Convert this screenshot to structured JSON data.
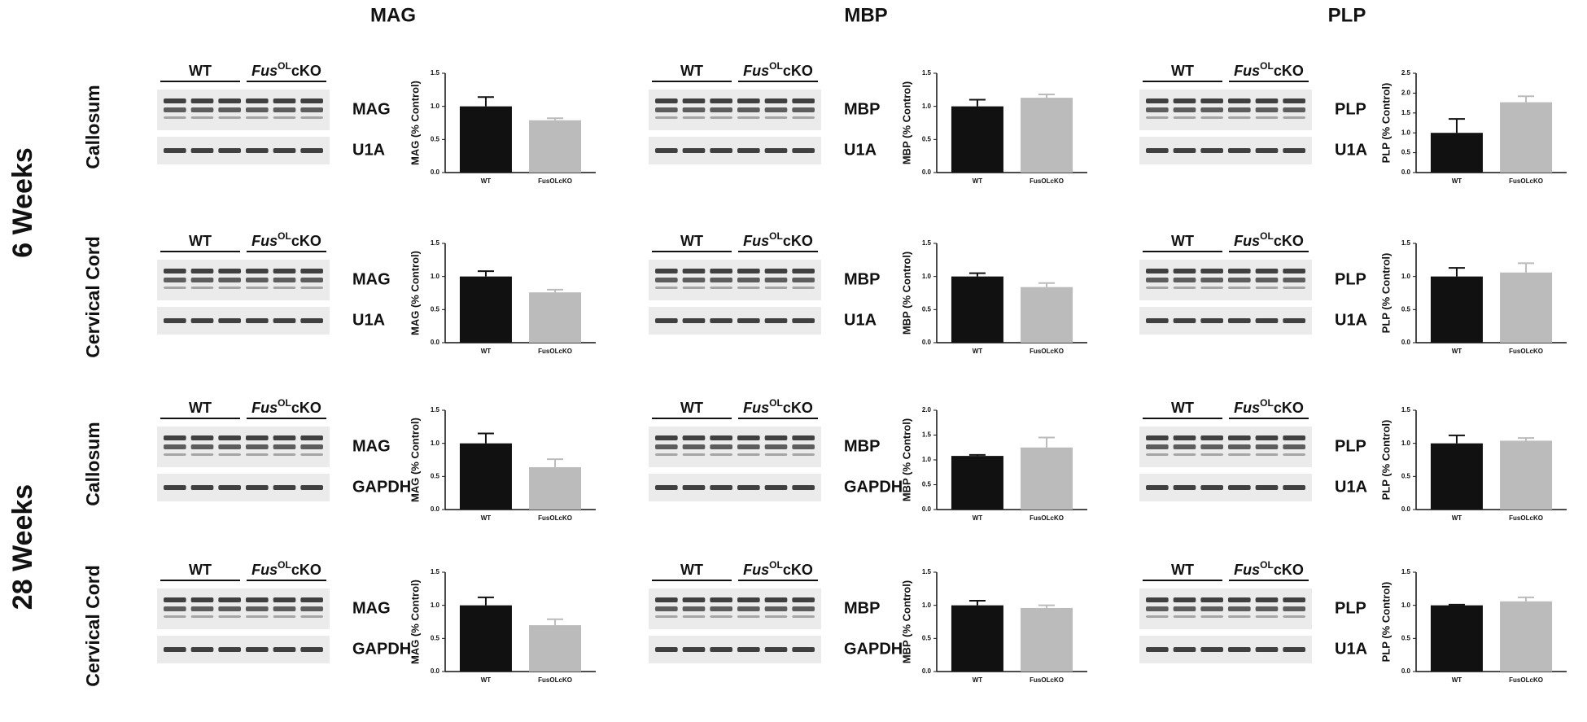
{
  "column_titles": [
    "MAG",
    "MBP",
    "PLP"
  ],
  "row_groups": [
    {
      "label": "6 Weeks",
      "rows": [
        "Callosum",
        "Cervical Cord"
      ]
    },
    {
      "label": "28 Weeks",
      "rows": [
        "Callosum",
        "Cervical Cord"
      ]
    }
  ],
  "genotype": {
    "wt": "WT",
    "ko": [
      "Fus",
      "OL",
      "cKO"
    ]
  },
  "blots": [
    {
      "bands": [
        "MAG",
        "U1A"
      ]
    },
    {
      "bands": [
        "MBP",
        "U1A"
      ]
    },
    {
      "bands": [
        "PLP",
        "U1A"
      ]
    },
    {
      "bands": [
        "MAG",
        "U1A"
      ]
    },
    {
      "bands": [
        "MBP",
        "U1A"
      ]
    },
    {
      "bands": [
        "PLP",
        "U1A"
      ]
    },
    {
      "bands": [
        "MAG",
        "GAPDH"
      ]
    },
    {
      "bands": [
        "MBP",
        "GAPDH"
      ]
    },
    {
      "bands": [
        "PLP",
        "U1A"
      ]
    },
    {
      "bands": [
        "MAG",
        "GAPDH"
      ]
    },
    {
      "bands": [
        "MBP",
        "GAPDH"
      ]
    },
    {
      "bands": [
        "PLP",
        "U1A"
      ]
    }
  ],
  "chart_data": [
    {
      "type": "bar",
      "y_label": "MAG (% Control)",
      "categories": [
        "WT",
        "FusOLcKO"
      ],
      "values": [
        1.0,
        0.79
      ],
      "errors": [
        0.14,
        0.03
      ],
      "colors": [
        "#111111",
        "#bbbbbb"
      ],
      "ylim": [
        0,
        1.5
      ],
      "yticks": [
        {
          "value": 0,
          "label": "0.0"
        },
        {
          "value": 0.5,
          "label": "0.5"
        },
        {
          "value": 1,
          "label": "1.0"
        },
        {
          "value": 1.5,
          "label": "1.5"
        }
      ]
    },
    {
      "type": "bar",
      "y_label": "MBP (% Control)",
      "categories": [
        "WT",
        "FusOLcKO"
      ],
      "values": [
        1.0,
        1.13
      ],
      "errors": [
        0.1,
        0.05
      ],
      "colors": [
        "#111111",
        "#bbbbbb"
      ],
      "ylim": [
        0,
        1.5
      ],
      "yticks": [
        {
          "value": 0,
          "label": "0.0"
        },
        {
          "value": 0.5,
          "label": "0.5"
        },
        {
          "value": 1,
          "label": "1.0"
        },
        {
          "value": 1.5,
          "label": "1.5"
        }
      ]
    },
    {
      "type": "bar",
      "y_label": "PLP (% Control)",
      "categories": [
        "WT",
        "FusOLcKO"
      ],
      "values": [
        1.0,
        1.77
      ],
      "errors": [
        0.35,
        0.15
      ],
      "colors": [
        "#111111",
        "#bbbbbb"
      ],
      "ylim": [
        0,
        2.5
      ],
      "yticks": [
        {
          "value": 0,
          "label": "0.0"
        },
        {
          "value": 0.5,
          "label": "0.5"
        },
        {
          "value": 1,
          "label": "1.0"
        },
        {
          "value": 1.5,
          "label": "1.5"
        },
        {
          "value": 2,
          "label": "2.0"
        },
        {
          "value": 2.5,
          "label": "2.5"
        }
      ]
    },
    {
      "type": "bar",
      "y_label": "MAG (% Control)",
      "categories": [
        "WT",
        "FusOLcKO"
      ],
      "values": [
        1.0,
        0.76
      ],
      "errors": [
        0.08,
        0.04
      ],
      "colors": [
        "#111111",
        "#bbbbbb"
      ],
      "ylim": [
        0,
        1.5
      ],
      "yticks": [
        {
          "value": 0,
          "label": "0.0"
        },
        {
          "value": 0.5,
          "label": "0.5"
        },
        {
          "value": 1,
          "label": "1.0"
        },
        {
          "value": 1.5,
          "label": "1.5"
        }
      ]
    },
    {
      "type": "bar",
      "y_label": "MBP (% Control)",
      "categories": [
        "WT",
        "FusOLcKO"
      ],
      "values": [
        1.0,
        0.84
      ],
      "errors": [
        0.05,
        0.06
      ],
      "colors": [
        "#111111",
        "#bbbbbb"
      ],
      "ylim": [
        0,
        1.5
      ],
      "yticks": [
        {
          "value": 0,
          "label": "0.0"
        },
        {
          "value": 0.5,
          "label": "0.5"
        },
        {
          "value": 1,
          "label": "1.0"
        },
        {
          "value": 1.5,
          "label": "1.5"
        }
      ]
    },
    {
      "type": "bar",
      "y_label": "PLP (% Control)",
      "categories": [
        "WT",
        "FusOLcKO"
      ],
      "values": [
        1.0,
        1.06
      ],
      "errors": [
        0.13,
        0.14
      ],
      "colors": [
        "#111111",
        "#bbbbbb"
      ],
      "ylim": [
        0,
        1.5
      ],
      "yticks": [
        {
          "value": 0,
          "label": "0.0"
        },
        {
          "value": 0.5,
          "label": "0.5"
        },
        {
          "value": 1,
          "label": "1.0"
        },
        {
          "value": 1.5,
          "label": "1.5"
        }
      ]
    },
    {
      "type": "bar",
      "y_label": "MAG (% Control)",
      "categories": [
        "WT",
        "FusOLcKO"
      ],
      "values": [
        1.0,
        0.64
      ],
      "errors": [
        0.15,
        0.12
      ],
      "colors": [
        "#111111",
        "#bbbbbb"
      ],
      "ylim": [
        0,
        1.5
      ],
      "yticks": [
        {
          "value": 0,
          "label": "0.0"
        },
        {
          "value": 0.5,
          "label": "0.5"
        },
        {
          "value": 1,
          "label": "1.0"
        },
        {
          "value": 1.5,
          "label": "1.5"
        }
      ]
    },
    {
      "type": "bar",
      "y_label": "MBP (% Control)",
      "categories": [
        "WT",
        "FusOLcKO"
      ],
      "values": [
        1.08,
        1.25
      ],
      "errors": [
        0.02,
        0.2
      ],
      "colors": [
        "#111111",
        "#bbbbbb"
      ],
      "ylim": [
        0,
        2
      ],
      "yticks": [
        {
          "value": 0,
          "label": "0.0"
        },
        {
          "value": 0.5,
          "label": "0.5"
        },
        {
          "value": 1,
          "label": "1.0"
        },
        {
          "value": 1.5,
          "label": "1.5"
        },
        {
          "value": 2,
          "label": "2.0"
        }
      ]
    },
    {
      "type": "bar",
      "y_label": "PLP (% Control)",
      "categories": [
        "WT",
        "FusOLcKO"
      ],
      "values": [
        1.0,
        1.04
      ],
      "errors": [
        0.12,
        0.04
      ],
      "colors": [
        "#111111",
        "#bbbbbb"
      ],
      "ylim": [
        0,
        1.5
      ],
      "yticks": [
        {
          "value": 0,
          "label": "0.0"
        },
        {
          "value": 0.5,
          "label": "0.5"
        },
        {
          "value": 1,
          "label": "1.0"
        },
        {
          "value": 1.5,
          "label": "1.5"
        }
      ]
    },
    {
      "type": "bar",
      "y_label": "MAG (% Control)",
      "categories": [
        "WT",
        "FusOLcKO"
      ],
      "values": [
        1.0,
        0.7
      ],
      "errors": [
        0.12,
        0.09
      ],
      "colors": [
        "#111111",
        "#bbbbbb"
      ],
      "ylim": [
        0,
        1.5
      ],
      "yticks": [
        {
          "value": 0,
          "label": "0.0"
        },
        {
          "value": 0.5,
          "label": "0.5"
        },
        {
          "value": 1,
          "label": "1.0"
        },
        {
          "value": 1.5,
          "label": "1.5"
        }
      ]
    },
    {
      "type": "bar",
      "y_label": "MBP (% Control)",
      "categories": [
        "WT",
        "FusOLcKO"
      ],
      "values": [
        1.0,
        0.96
      ],
      "errors": [
        0.07,
        0.04
      ],
      "colors": [
        "#111111",
        "#bbbbbb"
      ],
      "ylim": [
        0,
        1.5
      ],
      "yticks": [
        {
          "value": 0,
          "label": "0.0"
        },
        {
          "value": 0.5,
          "label": "0.5"
        },
        {
          "value": 1,
          "label": "1.0"
        },
        {
          "value": 1.5,
          "label": "1.5"
        }
      ]
    },
    {
      "type": "bar",
      "y_label": "PLP (% Control)",
      "categories": [
        "WT",
        "FusOLcKO"
      ],
      "values": [
        1.0,
        1.06
      ],
      "errors": [
        0.01,
        0.06
      ],
      "colors": [
        "#111111",
        "#bbbbbb"
      ],
      "ylim": [
        0,
        1.5
      ],
      "yticks": [
        {
          "value": 0,
          "label": "0.0"
        },
        {
          "value": 0.5,
          "label": "0.5"
        },
        {
          "value": 1,
          "label": "1.0"
        },
        {
          "value": 1.5,
          "label": "1.5"
        }
      ]
    }
  ]
}
